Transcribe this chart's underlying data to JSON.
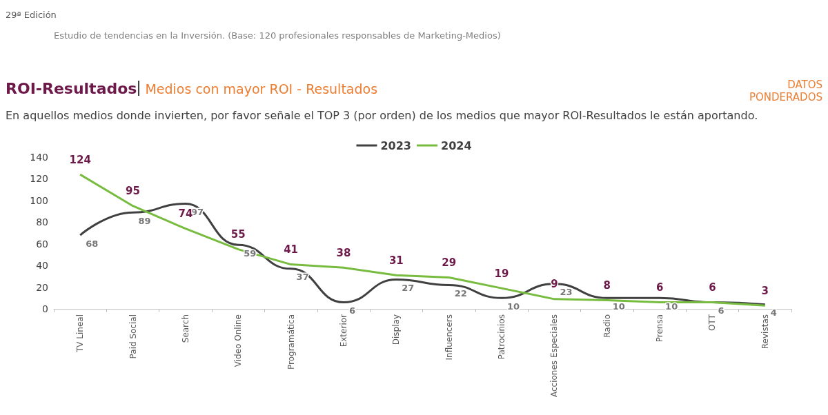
{
  "chart_data": {
    "type": "line",
    "title": "ROI-Resultados",
    "subtitle": "Medios con mayor ROI - Resultados",
    "annotations": [
      "29ª Edición",
      "Estudio de tendencias en la Inversión. (Base: 120 profesionales responsables de Marketing-Medios)",
      "DATOS PONDERADOS",
      "En aquellos medios donde invierten, por favor señale el TOP 3 (por orden) de los medios que mayor ROI-Resultados le están aportando."
    ],
    "categories": [
      "TV Lineal",
      "Paid Social",
      "Search",
      "Video Online",
      "Programática",
      "Exterior",
      "Display",
      "Influencers",
      "Patrocinios",
      "Acciones Especiales",
      "Radio",
      "Prensa",
      "OTT",
      "Revistas"
    ],
    "series": [
      {
        "name": "2023",
        "color": "#404040",
        "values": [
          68,
          89,
          97,
          59,
          37,
          6,
          27,
          22,
          10,
          23,
          10,
          10,
          6,
          4
        ]
      },
      {
        "name": "2024",
        "color": "#77bc3f",
        "values": [
          124,
          95,
          74,
          55,
          41,
          38,
          31,
          29,
          19,
          9,
          8,
          6,
          6,
          3
        ]
      }
    ],
    "ylim": [
      0,
      140
    ],
    "yticks": [
      0,
      20,
      40,
      60,
      80,
      100,
      120,
      140
    ],
    "grid": false,
    "legend": "top",
    "marker": "none",
    "data_labels": true
  }
}
